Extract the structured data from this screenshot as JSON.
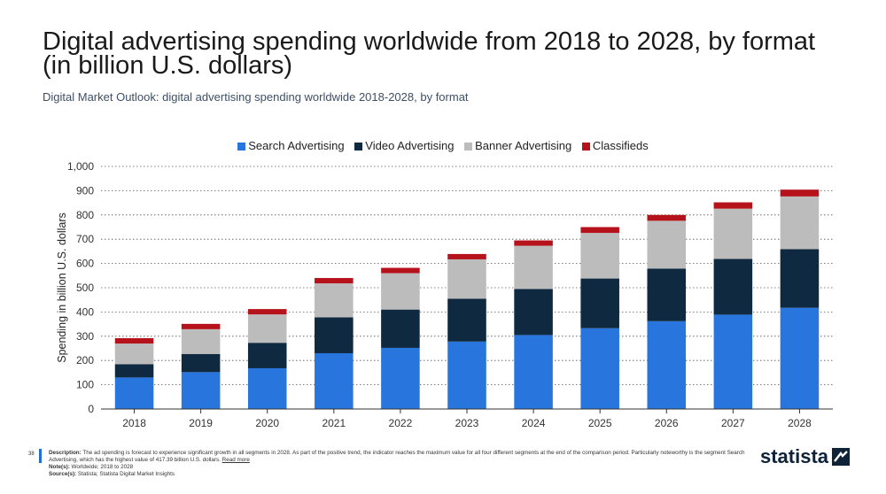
{
  "title": "Digital advertising spending worldwide from 2018 to 2028, by format (in billion U.S. dollars)",
  "subtitle": "Digital Market Outlook: digital advertising spending worldwide 2018-2028, by format",
  "colors": {
    "search": "#2876dd",
    "video": "#0f2940",
    "banner": "#bcbcbc",
    "classifieds": "#b5121b",
    "brand": "#0e2238",
    "accent": "#1f6fd1"
  },
  "chart_data": {
    "type": "bar",
    "stacked": true,
    "categories": [
      "2018",
      "2019",
      "2020",
      "2021",
      "2022",
      "2023",
      "2024",
      "2025",
      "2026",
      "2027",
      "2028"
    ],
    "series": [
      {
        "name": "Search Advertising",
        "color": "#2876dd",
        "values": [
          130,
          152,
          168,
          230,
          252,
          278,
          305,
          333,
          362,
          389,
          417.39
        ]
      },
      {
        "name": "Video Advertising",
        "color": "#0f2940",
        "values": [
          55,
          75,
          105,
          148,
          158,
          177,
          190,
          205,
          217,
          230,
          242
        ]
      },
      {
        "name": "Banner Advertising",
        "color": "#bcbcbc",
        "values": [
          85,
          102,
          117,
          140,
          150,
          162,
          178,
          188,
          197,
          207,
          217
        ]
      },
      {
        "name": "Classifieds",
        "color": "#b5121b",
        "values": [
          22,
          22,
          22,
          22,
          22,
          22,
          22,
          24,
          24,
          26,
          28
        ]
      }
    ],
    "ylabel": "Spending in billion U.S. dollars",
    "xlabel": "",
    "ylim": [
      0,
      1000
    ],
    "yticks": [
      0,
      100,
      200,
      300,
      400,
      500,
      600,
      700,
      800,
      900,
      1000
    ],
    "ytick_labels": [
      "0",
      "100",
      "200",
      "300",
      "400",
      "500",
      "600",
      "700",
      "800",
      "900",
      "1,000"
    ],
    "grid": true,
    "legend_position": "top-center"
  },
  "footer": {
    "page_number": "38",
    "description_label": "Description:",
    "description_text": "The ad spending is forecast to experience significant growth in all segments in 2028. As part of the positive trend, the indicator reaches the maximum value for all four different segments at the end of the comparison period. Particularly noteworthy is the segment Search Advertising, which has the highest value of 417.39 billion U.S. dollars.",
    "read_more": "Read more",
    "notes_label": "Note(s):",
    "notes_text": "Worldwide; 2018 to 2028",
    "sources_label": "Source(s):",
    "sources_text": "Statista; Statista Digital Market Insights"
  },
  "brand": {
    "name": "statista"
  }
}
